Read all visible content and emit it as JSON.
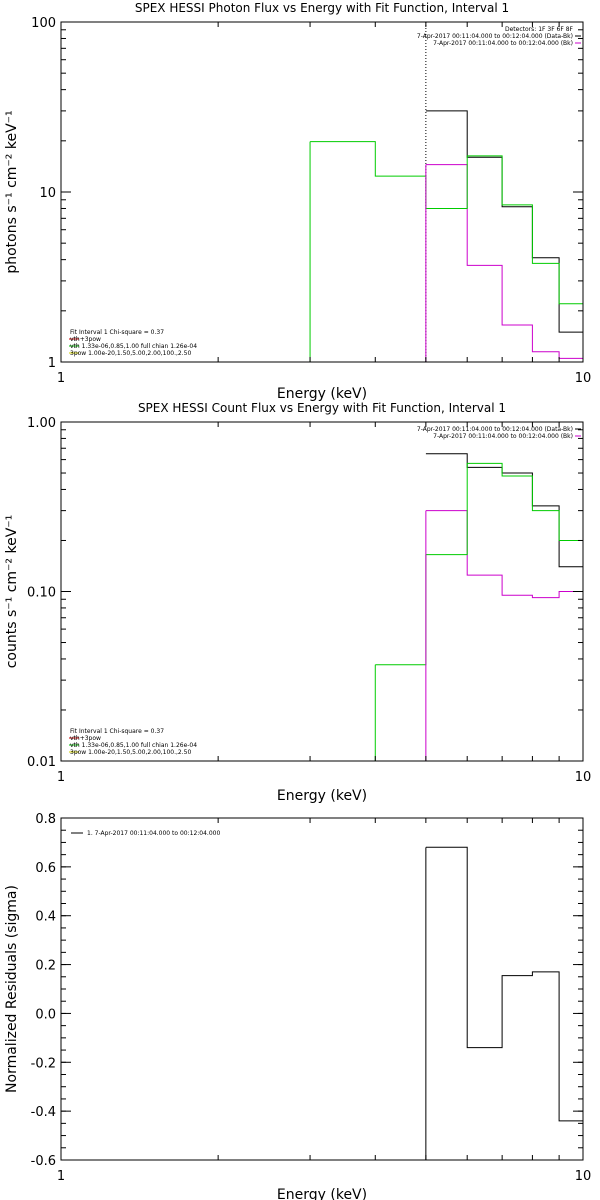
{
  "chart_data": [
    {
      "type": "line",
      "title": "SPEX HESSI Photon Flux vs Energy with Fit Function, Interval 1",
      "xlabel": "Energy (keV)",
      "ylabel": "photons s⁻¹ cm⁻² keV⁻¹",
      "xscale": "log",
      "yscale": "log",
      "xlim": [
        1,
        10
      ],
      "ylim": [
        1,
        100
      ],
      "x_ticks": [
        {
          "v": 1,
          "label": "1"
        },
        {
          "v": 10,
          "label": "10"
        }
      ],
      "y_ticks": [
        {
          "v": 1,
          "label": "1"
        },
        {
          "v": 10,
          "label": "10"
        },
        {
          "v": 100,
          "label": "100"
        }
      ],
      "marker_line_x": 5,
      "info": [
        "Detectors: 1F 3F 6F 8F",
        "7-Apr-2017 00:11:04.000 to 00:12:04.000 (Data-Bk)",
        "7-Apr-2017 00:11:04.000 to 00:12:04.000 (Bk)"
      ],
      "info_colors": [
        "",
        "#000000",
        "#cc00cc"
      ],
      "legend": [
        "Fit Interval 1    Chi-square = 0.37",
        "vth+3pow",
        "vth 1.33e-06,0.85,1.00  full chian 1.26e-04",
        "3pow 1.00e-20,1.50,5.00,2.00,100.,2.50"
      ],
      "legend_colors": [
        "",
        "#cc0000",
        "#00bb00",
        "#cccc00"
      ],
      "series": [
        {
          "color": "#000000",
          "edges": [
            5,
            6,
            7,
            8,
            9,
            10
          ],
          "values": [
            30,
            16,
            8.2,
            4.1,
            1.5
          ]
        },
        {
          "color": "#cc00cc",
          "edges": [
            5,
            6,
            7,
            8,
            9,
            10
          ],
          "values": [
            14.5,
            3.7,
            1.65,
            1.15,
            1.05
          ]
        },
        {
          "color": "#00cc00",
          "edges": [
            3,
            4,
            5,
            6,
            7,
            8,
            9,
            10
          ],
          "values": [
            19.8,
            12.4,
            8,
            16.3,
            8.4,
            3.8,
            2.2
          ]
        }
      ],
      "vlines": [
        {
          "color": "#00cc00",
          "x": 3,
          "from": 1,
          "to": 19.8
        },
        {
          "color": "#cc00cc",
          "x": 5,
          "from": 1,
          "to": 14.5
        }
      ]
    },
    {
      "type": "line",
      "title": "SPEX HESSI Count Flux vs Energy with Fit Function, Interval 1",
      "xlabel": "Energy (keV)",
      "ylabel": "counts s⁻¹ cm⁻² keV⁻¹",
      "xscale": "log",
      "yscale": "log",
      "xlim": [
        1,
        10
      ],
      "ylim": [
        0.01,
        1
      ],
      "x_ticks": [
        {
          "v": 1,
          "label": "1"
        },
        {
          "v": 10,
          "label": "10"
        }
      ],
      "y_ticks": [
        {
          "v": 0.01,
          "label": "0.01"
        },
        {
          "v": 0.1,
          "label": "0.10"
        },
        {
          "v": 1,
          "label": "1.00"
        }
      ],
      "info": [
        "7-Apr-2017 00:11:04.000 to 00:12:04.000 (Data-Bk)",
        "7-Apr-2017 00:11:04.000 to 00:12:04.000 (Bk)"
      ],
      "info_colors": [
        "#000000",
        "#cc00cc"
      ],
      "legend": [
        "Fit Interval 1    Chi-square = 0.37",
        "vth+3pow",
        "vth 1.33e-06,0.85,1.00  full chian 1.26e-04",
        "3pow 1.00e-20,1.50,5.00,2.00,100.,2.50"
      ],
      "legend_colors": [
        "",
        "#cc0000",
        "#00bb00",
        "#cccc00"
      ],
      "series": [
        {
          "color": "#000000",
          "edges": [
            5,
            6,
            7,
            8,
            9,
            10
          ],
          "values": [
            0.65,
            0.54,
            0.5,
            0.32,
            0.14
          ]
        },
        {
          "color": "#cc00cc",
          "edges": [
            5,
            6,
            7,
            8,
            9,
            10
          ],
          "values": [
            0.3,
            0.125,
            0.095,
            0.092,
            0.1
          ]
        },
        {
          "color": "#00cc00",
          "edges": [
            4,
            5,
            6,
            7,
            8,
            9,
            10
          ],
          "values": [
            0.037,
            0.165,
            0.57,
            0.48,
            0.3,
            0.2
          ]
        }
      ],
      "vlines": [
        {
          "color": "#00cc00",
          "x": 4,
          "from": 0.01,
          "to": 0.037
        },
        {
          "color": "#cc00cc",
          "x": 5,
          "from": 0.01,
          "to": 0.3
        },
        {
          "color": "#cc00cc",
          "x": 10,
          "from": 0.01,
          "to": 0.1
        }
      ]
    },
    {
      "type": "line",
      "title": "",
      "xlabel": "Energy (keV)",
      "ylabel": "Normalized Residuals (sigma)",
      "xscale": "log",
      "yscale": "linear",
      "xlim": [
        1,
        10
      ],
      "ylim": [
        -0.6,
        0.8
      ],
      "x_ticks": [
        {
          "v": 1,
          "label": "1"
        },
        {
          "v": 10,
          "label": "10"
        }
      ],
      "y_ticks": [
        {
          "v": -0.6,
          "label": "-0.6"
        },
        {
          "v": -0.4,
          "label": "-0.4"
        },
        {
          "v": -0.2,
          "label": "-0.2"
        },
        {
          "v": 0,
          "label": "0.0"
        },
        {
          "v": 0.2,
          "label": "0.2"
        },
        {
          "v": 0.4,
          "label": "0.4"
        },
        {
          "v": 0.6,
          "label": "0.6"
        },
        {
          "v": 0.8,
          "label": "0.8"
        }
      ],
      "legend": [
        "1.  7-Apr-2017 00:11:04.000 to 00:12:04.000"
      ],
      "series": [
        {
          "color": "#000000",
          "edges": [
            5,
            6,
            7,
            8,
            9,
            10
          ],
          "values": [
            0.68,
            -0.14,
            0.155,
            0.17,
            -0.44
          ]
        }
      ],
      "vlines": [
        {
          "color": "#000000",
          "x": 5,
          "from": -0.6,
          "to": 0.68
        }
      ]
    }
  ]
}
